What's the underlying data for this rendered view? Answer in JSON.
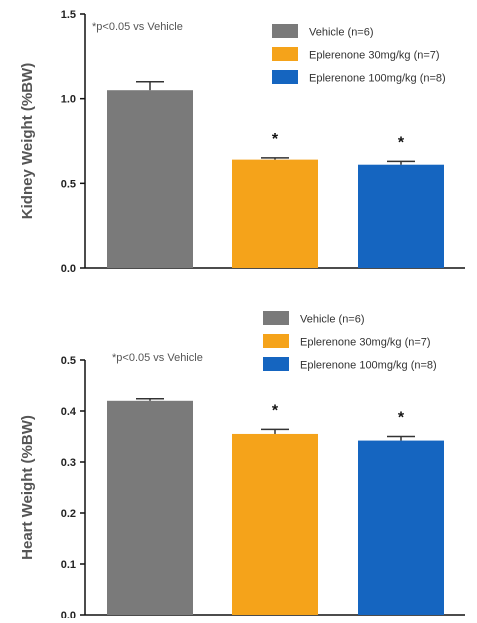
{
  "chart_data": [
    {
      "type": "bar",
      "ylabel": "Kidney Weight (%BW)",
      "ylim": [
        0,
        1.5
      ],
      "yticks": [
        0.0,
        0.5,
        1.0,
        1.5
      ],
      "ytick_labels": [
        "0.0",
        "0.5",
        "1.0",
        "1.5"
      ],
      "note": "*p<0.05 vs Vehicle",
      "legend_position": "top-right",
      "series": [
        {
          "name": "Vehicle (n=6)",
          "color": "#7a7a7a",
          "value": 1.05,
          "error": 0.05,
          "significant": false
        },
        {
          "name": "Eplerenone 30mg/kg (n=7)",
          "color": "#f5a31a",
          "value": 0.64,
          "error": 0.01,
          "significant": true
        },
        {
          "name": "Eplerenone 100mg/kg (n=8)",
          "color": "#1565c0",
          "value": 0.61,
          "error": 0.02,
          "significant": true
        }
      ],
      "significance_marker": "*"
    },
    {
      "type": "bar",
      "ylabel": "Heart Weight (%BW)",
      "ylim": [
        0,
        0.5
      ],
      "yticks": [
        0.0,
        0.1,
        0.2,
        0.3,
        0.4,
        0.5
      ],
      "ytick_labels": [
        "0.0",
        "0.1",
        "0.2",
        "0.3",
        "0.4",
        "0.5"
      ],
      "note": "*p<0.05 vs Vehicle",
      "legend_position": "top-right",
      "series": [
        {
          "name": "Vehicle (n=6)",
          "color": "#7a7a7a",
          "value": 0.42,
          "error": 0.004,
          "significant": false
        },
        {
          "name": "Eplerenone 30mg/kg (n=7)",
          "color": "#f5a31a",
          "value": 0.355,
          "error": 0.009,
          "significant": true
        },
        {
          "name": "Eplerenone 100mg/kg (n=8)",
          "color": "#1565c0",
          "value": 0.342,
          "error": 0.008,
          "significant": true
        }
      ],
      "significance_marker": "*"
    }
  ]
}
